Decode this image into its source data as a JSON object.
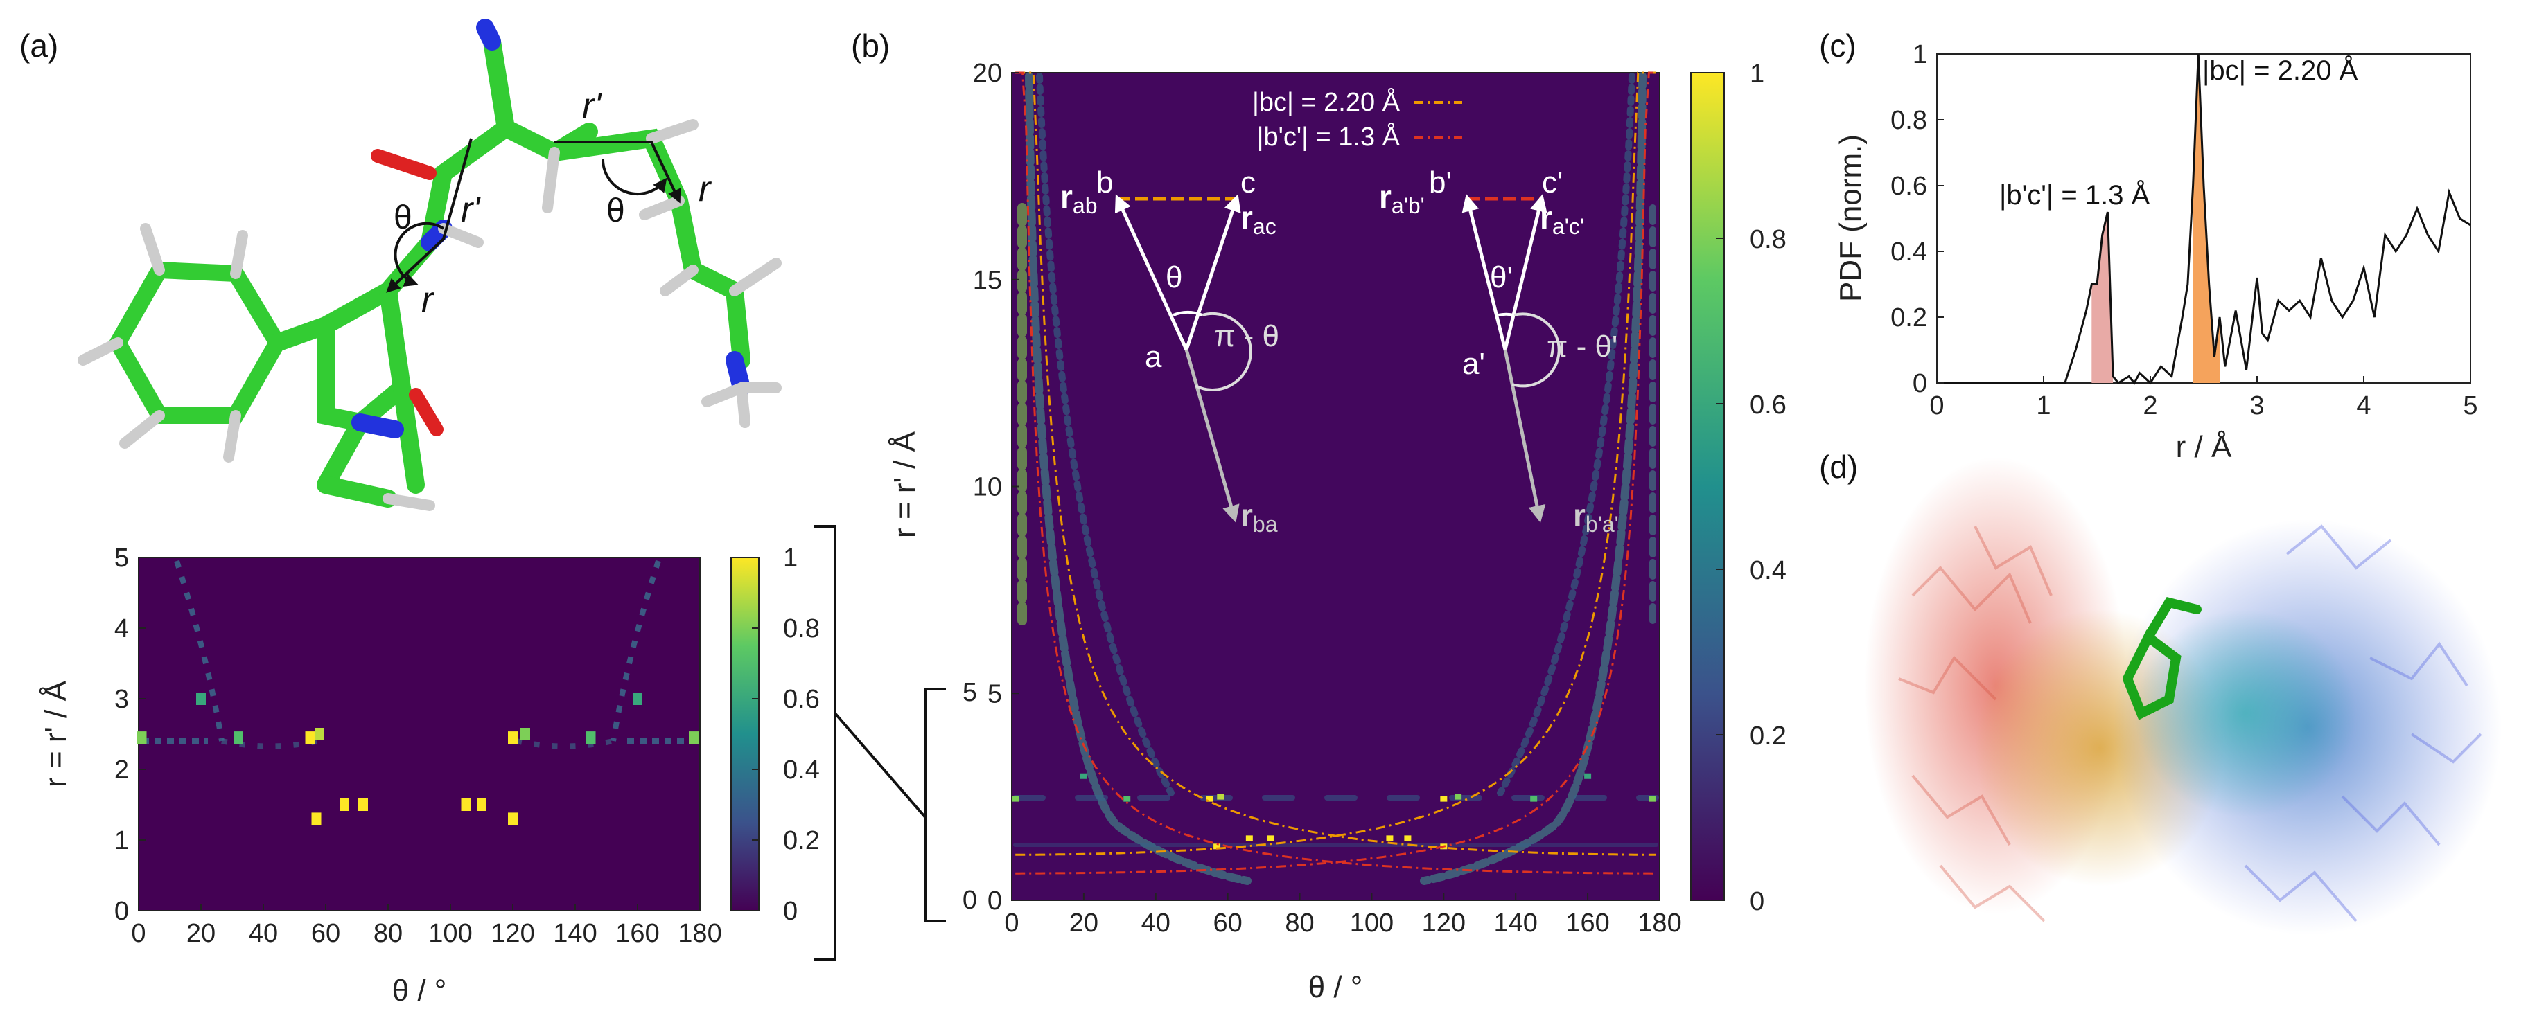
{
  "panels": {
    "a": {
      "label": "(a)",
      "molecule_labels": {
        "theta_left": "θ",
        "theta_right": "θ",
        "r_prime_left": "r'",
        "r_prime_top": "r'",
        "r_left": "r",
        "r_right": "r"
      },
      "chart_data": {
        "type": "heatmap",
        "xlabel": "θ / °",
        "ylabel": "r = r' / Å",
        "xlim": [
          0,
          180
        ],
        "ylim": [
          0,
          5
        ],
        "xticks": [
          "0",
          "20",
          "40",
          "60",
          "80",
          "100",
          "120",
          "140",
          "160",
          "180"
        ],
        "yticks": [
          "0",
          "1",
          "2",
          "3",
          "4",
          "5"
        ],
        "colorbar": {
          "min": 0,
          "max": 1,
          "ticks": [
            "0",
            "0.2",
            "0.4",
            "0.6",
            "0.8",
            "1"
          ]
        },
        "hot_spots": [
          {
            "theta": 1,
            "r": 2.45,
            "value": 0.8
          },
          {
            "theta": 20,
            "r": 3.0,
            "value": 0.6
          },
          {
            "theta": 32,
            "r": 2.45,
            "value": 0.7
          },
          {
            "theta": 55,
            "r": 2.45,
            "value": 1.0
          },
          {
            "theta": 58,
            "r": 2.5,
            "value": 0.9
          },
          {
            "theta": 57,
            "r": 1.3,
            "value": 1.0
          },
          {
            "theta": 66,
            "r": 1.5,
            "value": 1.0
          },
          {
            "theta": 72,
            "r": 1.5,
            "value": 1.0
          },
          {
            "theta": 105,
            "r": 1.5,
            "value": 1.0
          },
          {
            "theta": 110,
            "r": 1.5,
            "value": 1.0
          },
          {
            "theta": 120,
            "r": 1.3,
            "value": 1.0
          },
          {
            "theta": 120,
            "r": 2.45,
            "value": 1.0
          },
          {
            "theta": 124,
            "r": 2.5,
            "value": 0.8
          },
          {
            "theta": 145,
            "r": 2.45,
            "value": 0.7
          },
          {
            "theta": 160,
            "r": 3.0,
            "value": 0.6
          },
          {
            "theta": 178,
            "r": 2.45,
            "value": 0.8
          }
        ]
      }
    },
    "b": {
      "label": "(b)",
      "legend": [
        "|bc| = 2.20 Å",
        "|b'c'| = 1.3 Å"
      ],
      "schematic": {
        "left": {
          "r_ab": "r",
          "r_ab_sub": "ab",
          "b": "b",
          "c": "c",
          "r_ac": "r",
          "r_ac_sub": "ac",
          "theta": "θ",
          "a": "a",
          "pi_theta": "π - θ",
          "r_ba": "r",
          "r_ba_sub": "ba"
        },
        "right": {
          "r_ab": "r",
          "r_ab_sub": "a'b'",
          "b": "b'",
          "c": "c'",
          "r_ac": "r",
          "r_ac_sub": "a'c'",
          "theta": "θ'",
          "a": "a'",
          "pi_theta": "π - θ'",
          "r_ba": "r",
          "r_ba_sub": "b'a'"
        }
      },
      "chart_data": {
        "type": "heatmap",
        "xlabel": "θ / °",
        "ylabel": "r = r' / Å",
        "xlim": [
          0,
          180
        ],
        "ylim": [
          0,
          20
        ],
        "xticks": [
          "0",
          "20",
          "40",
          "60",
          "80",
          "100",
          "120",
          "140",
          "160",
          "180"
        ],
        "yticks": [
          "0",
          "5",
          "10",
          "15",
          "20"
        ],
        "inset_ticks": [
          "0",
          "5"
        ],
        "colorbar": {
          "min": 0,
          "max": 1,
          "ticks": [
            "0",
            "0.2",
            "0.4",
            "0.6",
            "0.8",
            "1"
          ]
        },
        "reference_curves": [
          {
            "name": "|bc| = 2.20 Å",
            "d": 2.2,
            "color": "#ee9900"
          },
          {
            "name": "|b'c'| = 1.3 Å",
            "d": 1.3,
            "color": "#dd3322"
          }
        ]
      }
    },
    "c": {
      "label": "(c)",
      "annotations": [
        "|bc| = 2.20 Å",
        "|b'c'| = 1.3 Å"
      ],
      "chart_data": {
        "type": "line",
        "xlabel": "r / Å",
        "ylabel": "PDF (norm.)",
        "xlim": [
          0,
          5
        ],
        "ylim": [
          0,
          1
        ],
        "xticks": [
          "0",
          "1",
          "2",
          "3",
          "4",
          "5"
        ],
        "yticks": [
          "0",
          "0.2",
          "0.4",
          "0.6",
          "0.8",
          "1"
        ],
        "x": [
          0,
          1.2,
          1.3,
          1.4,
          1.45,
          1.5,
          1.55,
          1.6,
          1.65,
          1.7,
          1.8,
          1.85,
          1.9,
          2.0,
          2.1,
          2.2,
          2.3,
          2.35,
          2.4,
          2.45,
          2.5,
          2.55,
          2.6,
          2.65,
          2.7,
          2.8,
          2.9,
          3.0,
          3.05,
          3.1,
          3.2,
          3.3,
          3.4,
          3.5,
          3.6,
          3.7,
          3.8,
          3.9,
          4.0,
          4.1,
          4.2,
          4.3,
          4.4,
          4.5,
          4.6,
          4.7,
          4.8,
          4.9,
          5.0
        ],
        "y": [
          0,
          0,
          0.1,
          0.22,
          0.3,
          0.3,
          0.45,
          0.52,
          0.02,
          0,
          0.02,
          0,
          0.03,
          0,
          0.05,
          0.02,
          0.2,
          0.3,
          0.6,
          1.0,
          0.6,
          0.3,
          0.08,
          0.2,
          0.05,
          0.22,
          0.04,
          0.32,
          0.15,
          0.13,
          0.25,
          0.22,
          0.25,
          0.2,
          0.38,
          0.25,
          0.2,
          0.25,
          0.35,
          0.2,
          0.45,
          0.4,
          0.45,
          0.53,
          0.45,
          0.4,
          0.58,
          0.5,
          0.48
        ],
        "shaded_regions": [
          {
            "from": 1.45,
            "to": 1.65,
            "color": "#e8aaa6"
          },
          {
            "from": 2.4,
            "to": 2.65,
            "color": "#f5a35c"
          }
        ]
      }
    },
    "d": {
      "label": "(d)"
    }
  }
}
